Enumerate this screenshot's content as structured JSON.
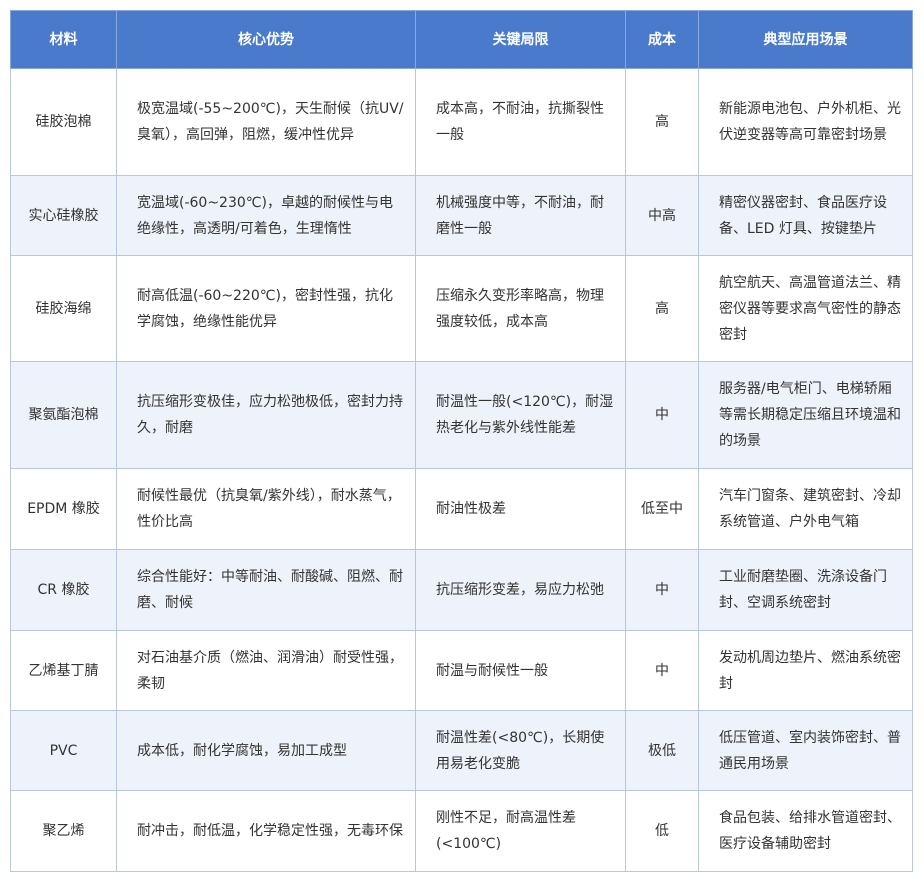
{
  "headers": [
    "材料",
    "核心优势",
    "关键局限",
    "成本",
    "典型应用场景"
  ],
  "rows": [
    [
      "硅胶泡棉",
      "极宽温域(-55~200℃)，天生耐候（抗UV/臭氧），高回弹，阻燃，缓冲性优异",
      "成本高，不耐油，抗撕裂性一般",
      "高",
      "新能源电池包、户外机柜、光伏逆变器等高可靠密封场景"
    ],
    [
      "实心硅橡胶",
      "宽温域(-60~230℃)，卓越的耐候性与电绝缘性，高透明/可着色，生理惰性",
      "机械强度中等，不耐油，耐磨性一般",
      "中高",
      "精密仪器密封、食品医疗设备、LED 灯具、按键垫片"
    ],
    [
      "硅胶海绵",
      "耐高低温(-60~220℃)，密封性强，抗化学腐蚀，绝缘性能优异",
      "压缩永久变形率略高，物理强度较低，成本高",
      "高",
      "航空航天、高温管道法兰、精密仪器等要求高气密性的静态密封"
    ],
    [
      "聚氨酯泡棉",
      "抗压缩形变极佳，应力松弛极低，密封力持久，耐磨",
      "耐温性一般(<120℃)，耐湿热老化与紫外线性能差",
      "中",
      "服务器/电气柜门、电梯轿厢等需长期稳定压缩且环境温和的场景"
    ],
    [
      "EPDM 橡胶",
      "耐候性最优（抗臭氧/紫外线），耐水蒸气，性价比高",
      "耐油性极差",
      "低至中",
      "汽车门窗条、建筑密封、冷却系统管道、户外电气箱"
    ],
    [
      "CR 橡胶",
      "综合性能好：中等耐油、耐酸碱、阻燃、耐磨、耐候",
      "抗压缩形变差，易应力松弛",
      "中",
      "工业耐磨垫圈、洗涤设备门封、空调系统密封"
    ],
    [
      "乙烯基丁腈",
      "对石油基介质（燃油、润滑油）耐受性强，柔韧",
      "耐温与耐候性一般",
      "中",
      "发动机周边垫片、燃油系统密封"
    ],
    [
      "PVC",
      "成本低，耐化学腐蚀，易加工成型",
      "耐温性差(<80℃)，长期使用易老化变脆",
      "极低",
      "低压管道、室内装饰密封、普通民用场景"
    ],
    [
      "聚乙烯",
      "耐冲击，耐低温，化学稳定性强，无毒环保",
      "刚性不足，耐高温性差(<100℃)",
      "低",
      "食品包装、给排水管道密封、医疗设备辅助密封"
    ]
  ],
  "colors": {
    "header_bg": "#4a7acb",
    "alt_row_bg": "#eef2fa"
  }
}
